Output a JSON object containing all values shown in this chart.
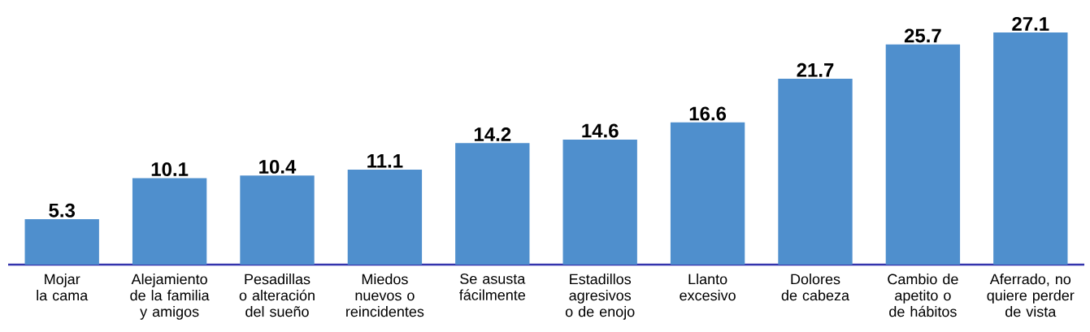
{
  "chart_data": {
    "type": "bar",
    "categories": [
      "Mojar la cama",
      "Alejamiento de la familia y amigos",
      "Pesadillas o alteración del sueño",
      "Miedos nuevos o reincidentes",
      "Se asusta fácilmente",
      "Estadillos agresivos o de enojo",
      "Llanto excesivo",
      "Dolores de cabeza",
      "Cambio de apetito o de hábitos",
      "Aferrado, no quiere perder de vista"
    ],
    "values": [
      5.3,
      10.1,
      10.4,
      11.1,
      14.2,
      14.6,
      16.6,
      21.7,
      25.7,
      27.1
    ],
    "color": "#4f8fcd",
    "data_labels": true
  }
}
